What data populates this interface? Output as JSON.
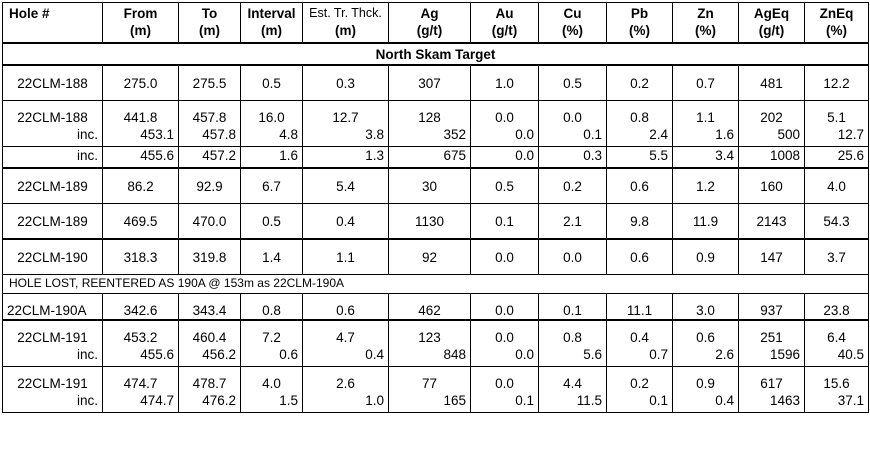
{
  "headers": [
    {
      "line1": "Hole #",
      "line2": ""
    },
    {
      "line1": "From",
      "line2": "(m)"
    },
    {
      "line1": "To",
      "line2": "(m)"
    },
    {
      "line1": "Interval",
      "line2": "(m)"
    },
    {
      "line1": "Est. Tr. Thck.",
      "line2": "(m)"
    },
    {
      "line1": "Ag",
      "line2": "(g/t)"
    },
    {
      "line1": "Au",
      "line2": "(g/t)"
    },
    {
      "line1": "Cu",
      "line2": "(%)"
    },
    {
      "line1": "Pb",
      "line2": "(%)"
    },
    {
      "line1": "Zn",
      "line2": "(%)"
    },
    {
      "line1": "AgEq",
      "line2": "(g/t)"
    },
    {
      "line1": "ZnEq",
      "line2": "(%)"
    }
  ],
  "target_title": "North Skam Target",
  "note_190": "HOLE LOST, REENTERED AS 190A @ 153m as 22CLM-190A",
  "rows": {
    "r188a": [
      "22CLM-188",
      "275.0",
      "275.5",
      "0.5",
      "0.3",
      "307",
      "1.0",
      "0.5",
      "0.2",
      "0.7",
      "481",
      "12.2"
    ],
    "r188b": [
      "22CLM-188",
      "441.8",
      "457.8",
      "16.0",
      "12.7",
      "128",
      "0.0",
      "0.0",
      "0.8",
      "1.1",
      "202",
      "5.1"
    ],
    "r188i1": [
      "inc.",
      "453.1",
      "457.8",
      "4.8",
      "3.8",
      "352",
      "0.0",
      "0.1",
      "2.4",
      "1.6",
      "500",
      "12.7"
    ],
    "r188i2": [
      "inc.",
      "455.6",
      "457.2",
      "1.6",
      "1.3",
      "675",
      "0.0",
      "0.3",
      "5.5",
      "3.4",
      "1008",
      "25.6"
    ],
    "r189a": [
      "22CLM-189",
      "86.2",
      "92.9",
      "6.7",
      "5.4",
      "30",
      "0.5",
      "0.2",
      "0.6",
      "1.2",
      "160",
      "4.0"
    ],
    "r189b": [
      "22CLM-189",
      "469.5",
      "470.0",
      "0.5",
      "0.4",
      "1130",
      "0.1",
      "2.1",
      "9.8",
      "11.9",
      "2143",
      "54.3"
    ],
    "r190": [
      "22CLM-190",
      "318.3",
      "319.8",
      "1.4",
      "1.1",
      "92",
      "0.0",
      "0.0",
      "0.6",
      "0.9",
      "147",
      "3.7"
    ],
    "r190a": [
      "22CLM-190A",
      "342.6",
      "343.4",
      "0.8",
      "0.6",
      "462",
      "0.0",
      "0.1",
      "11.1",
      "3.0",
      "937",
      "23.8"
    ],
    "r191a": [
      "22CLM-191",
      "453.2",
      "460.4",
      "7.2",
      "4.7",
      "123",
      "0.0",
      "0.8",
      "0.4",
      "0.6",
      "251",
      "6.4"
    ],
    "r191i1": [
      "inc.",
      "455.6",
      "456.2",
      "0.6",
      "0.4",
      "848",
      "0.0",
      "5.6",
      "0.7",
      "2.6",
      "1596",
      "40.5"
    ],
    "r191b": [
      "22CLM-191",
      "474.7",
      "478.7",
      "4.0",
      "2.6",
      "77",
      "0.0",
      "4.4",
      "0.2",
      "0.9",
      "617",
      "15.6"
    ],
    "r191i2": [
      "inc.",
      "474.7",
      "476.2",
      "1.5",
      "1.0",
      "165",
      "0.1",
      "11.5",
      "0.1",
      "0.4",
      "1463",
      "37.1"
    ]
  }
}
